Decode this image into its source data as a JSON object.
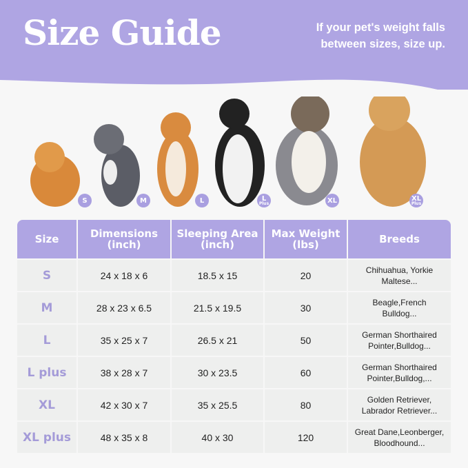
{
  "header": {
    "title": "Size Guide",
    "note_line1": "If your pet's weight falls",
    "note_line2": "between sizes, size up."
  },
  "colors": {
    "accent": "#afa5e3",
    "row": "#eeefee",
    "size_text": "#a49bd8"
  },
  "badges": [
    {
      "label": "S",
      "sub": ""
    },
    {
      "label": "M",
      "sub": ""
    },
    {
      "label": "L",
      "sub": ""
    },
    {
      "label": "L",
      "sub": "Plus"
    },
    {
      "label": "XL",
      "sub": ""
    },
    {
      "label": "XL",
      "sub": "Plus"
    }
  ],
  "table": {
    "headers": [
      [
        "Size",
        ""
      ],
      [
        "Dimensions",
        "(inch)"
      ],
      [
        "Sleeping Area",
        "(inch)"
      ],
      [
        "Max Weight",
        "(lbs)"
      ],
      [
        "Breeds",
        ""
      ]
    ],
    "rows": [
      {
        "size": "S",
        "dimensions": "24 x 18 x 6",
        "sleeping": "18.5 x 15",
        "weight": "20",
        "breeds1": "Chihuahua, Yorkie",
        "breeds2": "Maltese..."
      },
      {
        "size": "M",
        "dimensions": "28 x 23 x 6.5",
        "sleeping": "21.5 x 19.5",
        "weight": "30",
        "breeds1": "Beagle,French",
        "breeds2": "Bulldog..."
      },
      {
        "size": "L",
        "dimensions": "35 x 25 x 7",
        "sleeping": "26.5 x 21",
        "weight": "50",
        "breeds1": "German Shorthaired",
        "breeds2": "Pointer,Bulldog..."
      },
      {
        "size": "L plus",
        "dimensions": "38 x 28 x 7",
        "sleeping": "30 x 23.5",
        "weight": "60",
        "breeds1": "German Shorthaired",
        "breeds2": "Pointer,Bulldog,..."
      },
      {
        "size": "XL",
        "dimensions": "42 x 30 x 7",
        "sleeping": "35 x 25.5",
        "weight": "80",
        "breeds1": "Golden Retriever,",
        "breeds2": "Labrador Retriever..."
      },
      {
        "size": "XL plus",
        "dimensions": "48 x 35 x 8",
        "sleeping": "40 x 30",
        "weight": "120",
        "breeds1": "Great Dane,Leonberger,",
        "breeds2": "Bloodhound..."
      }
    ]
  }
}
